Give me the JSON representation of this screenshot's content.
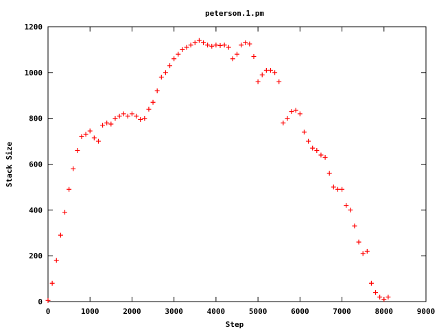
{
  "chart_data": {
    "type": "scatter",
    "title": "peterson.1.pm",
    "xlabel": "Step",
    "ylabel": "Stack Size",
    "xlim": [
      0,
      9000
    ],
    "ylim": [
      0,
      1200
    ],
    "xticks": [
      0,
      1000,
      2000,
      3000,
      4000,
      5000,
      6000,
      7000,
      8000,
      9000
    ],
    "yticks": [
      0,
      200,
      400,
      600,
      800,
      1000,
      1200
    ],
    "xtick_labels": [
      "0",
      "1000",
      "2000",
      "3000",
      "4000",
      "5000",
      "6000",
      "7000",
      "8000",
      "9000"
    ],
    "ytick_labels": [
      "0",
      "200",
      "400",
      "600",
      "800",
      "1000",
      "1200"
    ],
    "grid": false,
    "legend": "none",
    "marker": "plus",
    "color": "#ff0000",
    "series": [
      {
        "x": [
          0,
          100,
          200,
          300,
          400,
          500,
          600,
          700,
          800,
          900,
          1000,
          1100,
          1200,
          1300,
          1400,
          1500,
          1600,
          1700,
          1800,
          1900,
          2000,
          2100,
          2200,
          2300,
          2400,
          2500,
          2600,
          2700,
          2800,
          2900,
          3000,
          3100,
          3200,
          3300,
          3400,
          3500,
          3600,
          3700,
          3800,
          3900,
          4000,
          4100,
          4200,
          4300,
          4400,
          4500,
          4600,
          4700,
          4800,
          4900,
          5000,
          5100,
          5200,
          5300,
          5400,
          5500,
          5600,
          5700,
          5800,
          5900,
          6000,
          6100,
          6200,
          6300,
          6400,
          6500,
          6600,
          6700,
          6800,
          6900,
          7000,
          7100,
          7200,
          7300,
          7400,
          7500,
          7600,
          7700,
          7800,
          7900,
          8000,
          8100
        ],
        "y": [
          5,
          80,
          180,
          290,
          390,
          490,
          580,
          660,
          720,
          730,
          745,
          715,
          700,
          770,
          780,
          775,
          800,
          810,
          820,
          810,
          820,
          810,
          795,
          800,
          840,
          870,
          920,
          980,
          1000,
          1030,
          1060,
          1080,
          1100,
          1110,
          1120,
          1130,
          1140,
          1130,
          1120,
          1115,
          1120,
          1118,
          1120,
          1110,
          1060,
          1080,
          1120,
          1130,
          1125,
          1070,
          960,
          990,
          1010,
          1010,
          1000,
          960,
          780,
          800,
          830,
          835,
          820,
          740,
          700,
          670,
          660,
          640,
          630,
          560,
          500,
          490,
          490,
          420,
          400,
          330,
          260,
          210,
          220,
          80,
          40,
          20,
          10,
          20
        ]
      }
    ]
  }
}
